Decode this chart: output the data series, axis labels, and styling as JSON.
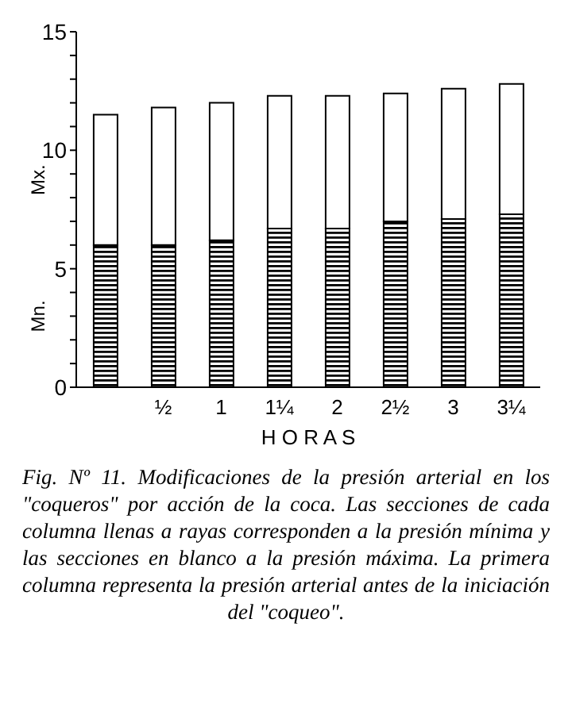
{
  "chart_data": {
    "type": "bar",
    "stacked": true,
    "xlabel": "H O R A S",
    "categories": [
      null,
      "½",
      "1",
      "1¼",
      "2",
      "2½",
      "3",
      "3¼"
    ],
    "series": [
      {
        "name": "Mn.",
        "color": "#000000",
        "values": [
          6.0,
          6.0,
          6.2,
          6.7,
          6.7,
          7.0,
          7.1,
          7.3
        ]
      },
      {
        "name": "Mx.",
        "color": "#ffffff",
        "values": [
          5.5,
          5.8,
          5.8,
          5.6,
          5.6,
          5.4,
          5.5,
          5.5
        ]
      }
    ],
    "ylim": [
      0,
      15
    ],
    "yticks": [
      0,
      {
        "value": 1,
        "label": null
      },
      {
        "value": 2,
        "label": null
      },
      {
        "value": 3,
        "label": null
      },
      {
        "value": 4,
        "label": null
      },
      5,
      {
        "value": 6,
        "label": null
      },
      {
        "value": 7,
        "label": null
      },
      {
        "value": 8,
        "label": null
      },
      {
        "value": 9,
        "label": null
      },
      10,
      {
        "value": 11,
        "label": null
      },
      {
        "value": 12,
        "label": null
      },
      {
        "value": 13,
        "label": null
      },
      {
        "value": 14,
        "label": null
      },
      15
    ],
    "grid": false,
    "legend": false,
    "annotations": [
      "Fig. Nº 11.  Modificaciones de la presión arterial en los \"coqueros\" por acción de la coca. Las secciones de cada columna llenas a rayas corresponden a la presión mínima y las secciones en blanco a la presión máxima.  La primera columna representa la presión arterial antes de la iniciación del \"coqueo\"."
    ]
  }
}
